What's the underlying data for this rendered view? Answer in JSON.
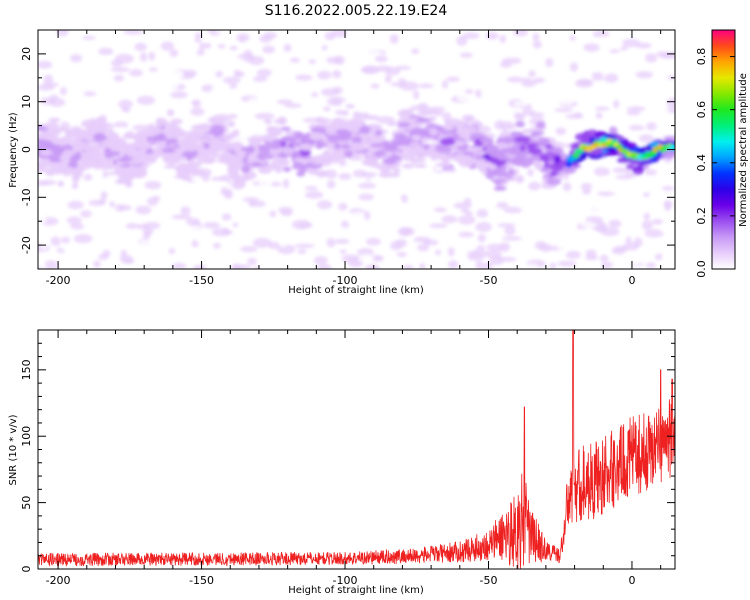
{
  "title": "S116.2022.005.22.19.E24",
  "chart_data": [
    {
      "type": "heatmap",
      "xlabel": "Height of straight line (km)",
      "ylabel": "Frequency (Hz)",
      "xlim": [
        -207,
        15
      ],
      "ylim": [
        -25,
        25
      ],
      "xticks": [
        -200,
        -150,
        -100,
        -50,
        0
      ],
      "yticks": [
        -20,
        -10,
        0,
        10,
        20
      ],
      "colorbar": {
        "label": "Normalized spectral amplitude",
        "range": [
          0,
          0.9
        ],
        "ticks": [
          0.0,
          0.2,
          0.4,
          0.6,
          0.8
        ],
        "colormap": [
          "#ffffff",
          "#e7cdfb",
          "#c89af6",
          "#9b4ff0",
          "#6a00e8",
          "#2d00e8",
          "#0033ff",
          "#00a5ff",
          "#00f0ee",
          "#00f07a",
          "#1fe81f",
          "#86e800",
          "#e6e800",
          "#ffa500",
          "#ff4a1a",
          "#ff0080"
        ]
      },
      "ridge": [
        {
          "x": -205,
          "f": 1.0,
          "amp": 0.14
        },
        {
          "x": -195,
          "f": -2.0,
          "amp": 0.12
        },
        {
          "x": -185,
          "f": 2.0,
          "amp": 0.13
        },
        {
          "x": -175,
          "f": -3.0,
          "amp": 0.12
        },
        {
          "x": -165,
          "f": 2.5,
          "amp": 0.13
        },
        {
          "x": -155,
          "f": -1.0,
          "amp": 0.12
        },
        {
          "x": -145,
          "f": 3.0,
          "amp": 0.12
        },
        {
          "x": -135,
          "f": -2.5,
          "amp": 0.12
        },
        {
          "x": -125,
          "f": 1.0,
          "amp": 0.13
        },
        {
          "x": -115,
          "f": -1.0,
          "amp": 0.22
        },
        {
          "x": -105,
          "f": 2.0,
          "amp": 0.14
        },
        {
          "x": -95,
          "f": 3.0,
          "amp": 0.15
        },
        {
          "x": -85,
          "f": -1.0,
          "amp": 0.14
        },
        {
          "x": -75,
          "f": 3.5,
          "amp": 0.15
        },
        {
          "x": -65,
          "f": 1.0,
          "amp": 0.17
        },
        {
          "x": -55,
          "f": 0.5,
          "amp": 0.18
        },
        {
          "x": -48,
          "f": -2.5,
          "amp": 0.24
        },
        {
          "x": -40,
          "f": -0.5,
          "amp": 0.2
        },
        {
          "x": -33,
          "f": 0.5,
          "amp": 0.2
        },
        {
          "x": -28,
          "f": -2.0,
          "amp": 0.24
        },
        {
          "x": -23,
          "f": -4.0,
          "amp": 0.32
        },
        {
          "x": -18,
          "f": 0.0,
          "amp": 0.55
        },
        {
          "x": -12,
          "f": 1.0,
          "amp": 0.62
        },
        {
          "x": -6,
          "f": 1.5,
          "amp": 0.58
        },
        {
          "x": -2,
          "f": -1.0,
          "amp": 0.55
        },
        {
          "x": 3,
          "f": -2.0,
          "amp": 0.52
        },
        {
          "x": 9,
          "f": 0.0,
          "amp": 0.6
        },
        {
          "x": 14,
          "f": 0.5,
          "amp": 0.5
        }
      ]
    },
    {
      "type": "line",
      "xlabel": "Height of straight line (km)",
      "ylabel": "SNR (10 * v/v)",
      "xlim": [
        -207,
        15
      ],
      "ylim": [
        0,
        180
      ],
      "xticks": [
        -200,
        -150,
        -100,
        -50,
        0
      ],
      "yticks": [
        0,
        50,
        100,
        150
      ],
      "color": "#ee2020",
      "envelope": {
        "x": [
          -207,
          -100,
          -75,
          -60,
          -50,
          -45,
          -40,
          -38,
          -35,
          -30,
          -25,
          -22,
          -20,
          -15,
          -10,
          -5,
          0,
          5,
          10,
          15
        ],
        "base": [
          7,
          8,
          10,
          13,
          18,
          25,
          30,
          35,
          25,
          14,
          10,
          55,
          62,
          66,
          70,
          78,
          85,
          88,
          95,
          100
        ],
        "noise": [
          5,
          5,
          6,
          8,
          12,
          20,
          30,
          40,
          22,
          8,
          6,
          25,
          30,
          30,
          30,
          30,
          30,
          30,
          30,
          30
        ]
      },
      "peaks": [
        {
          "x": -37.5,
          "y": 122
        },
        {
          "x": -20.5,
          "y": 180
        },
        {
          "x": 10,
          "y": 150
        },
        {
          "x": 14,
          "y": 143
        }
      ]
    }
  ]
}
